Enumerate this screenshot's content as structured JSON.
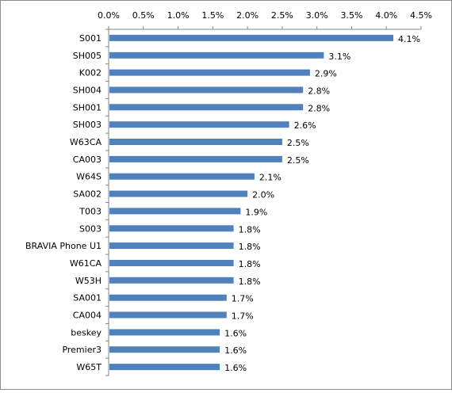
{
  "chart_data": {
    "type": "bar",
    "orientation": "horizontal",
    "x_axis_position": "top",
    "categories": [
      "S001",
      "SH005",
      "K002",
      "SH004",
      "SH001",
      "SH003",
      "W63CA",
      "CA003",
      "W64S",
      "SA002",
      "T003",
      "S003",
      "BRAVIA Phone U1",
      "W61CA",
      "W53H",
      "SA001",
      "CA004",
      "beskey",
      "Premier3",
      "W65T"
    ],
    "values": [
      4.1,
      3.1,
      2.9,
      2.8,
      2.8,
      2.6,
      2.5,
      2.5,
      2.1,
      2.0,
      1.9,
      1.8,
      1.8,
      1.8,
      1.8,
      1.7,
      1.7,
      1.6,
      1.6,
      1.6
    ],
    "value_labels": [
      "4.1%",
      "3.1%",
      "2.9%",
      "2.8%",
      "2.8%",
      "2.6%",
      "2.5%",
      "2.5%",
      "2.1%",
      "2.0%",
      "1.9%",
      "1.8%",
      "1.8%",
      "1.8%",
      "1.8%",
      "1.7%",
      "1.7%",
      "1.6%",
      "1.6%",
      "1.6%"
    ],
    "xlim": [
      0,
      4.5
    ],
    "xticks": [
      0,
      0.5,
      1.0,
      1.5,
      2.0,
      2.5,
      3.0,
      3.5,
      4.0,
      4.5
    ],
    "xtick_labels": [
      "0.0%",
      "0.5%",
      "1.0%",
      "1.5%",
      "2.0%",
      "2.5%",
      "3.0%",
      "3.5%",
      "4.0%",
      "4.5%"
    ],
    "grid": false,
    "legend": "none",
    "bar_color": "#4f81bd",
    "title": "",
    "xlabel": "",
    "ylabel": ""
  }
}
